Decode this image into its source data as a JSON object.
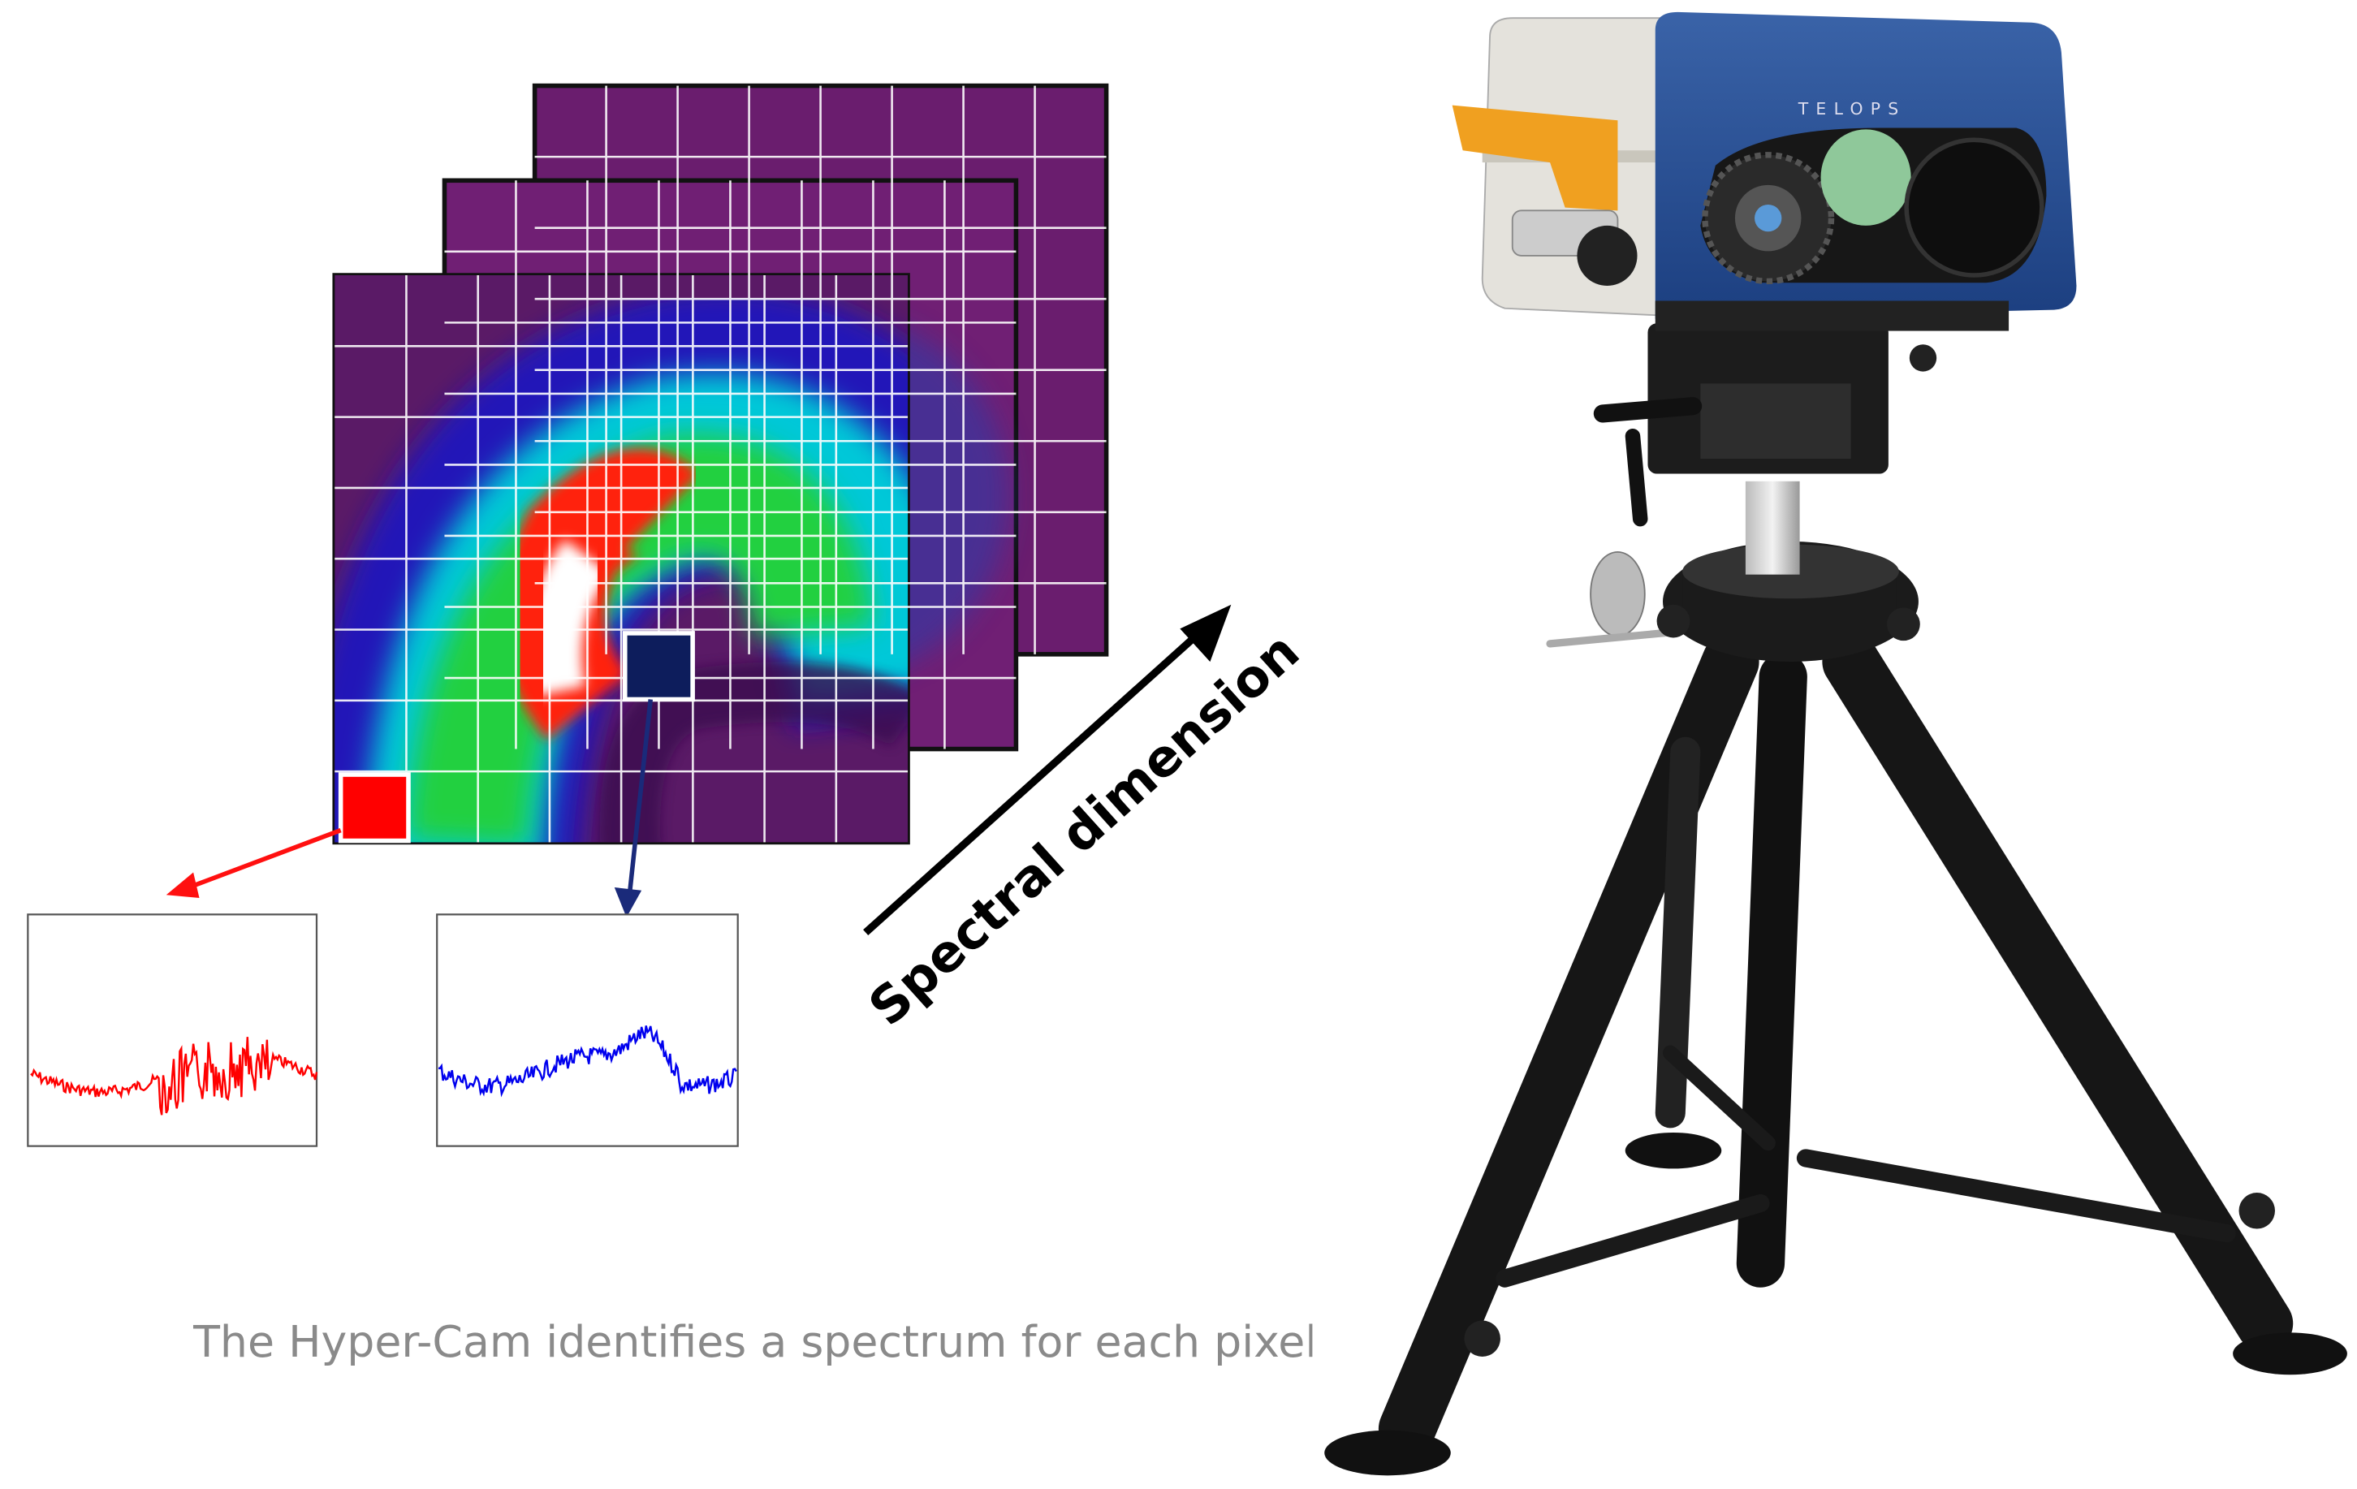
{
  "arrow_label": "Spectral dimension",
  "caption": "The Hyper-Cam identifies a spectrum for each pixel.",
  "camera_brand": "TELOPS"
}
